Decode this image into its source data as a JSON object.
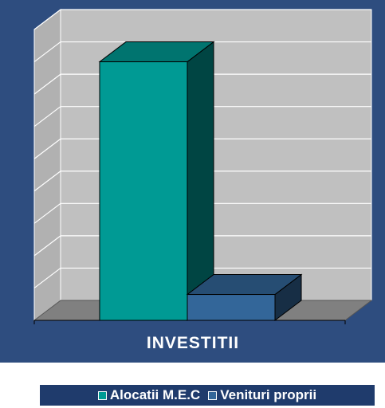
{
  "chart_data": {
    "type": "bar",
    "categories": [
      "INVESTITII"
    ],
    "series": [
      {
        "name": "Alocatii M.E.C",
        "values": [
          8
        ],
        "color": "#009a94"
      },
      {
        "name": "Venituri proprii",
        "values": [
          0.8
        ],
        "color": "#336699"
      }
    ],
    "title": "",
    "xlabel": "",
    "ylabel": "",
    "ylim": [
      0,
      9
    ],
    "grid": true,
    "legend_position": "bottom",
    "three_d": true
  },
  "colors": {
    "background": "#2e4d7f",
    "wall": "#c0c0c0",
    "floor": "#808080",
    "legend_bg": "#1f3b6c"
  }
}
